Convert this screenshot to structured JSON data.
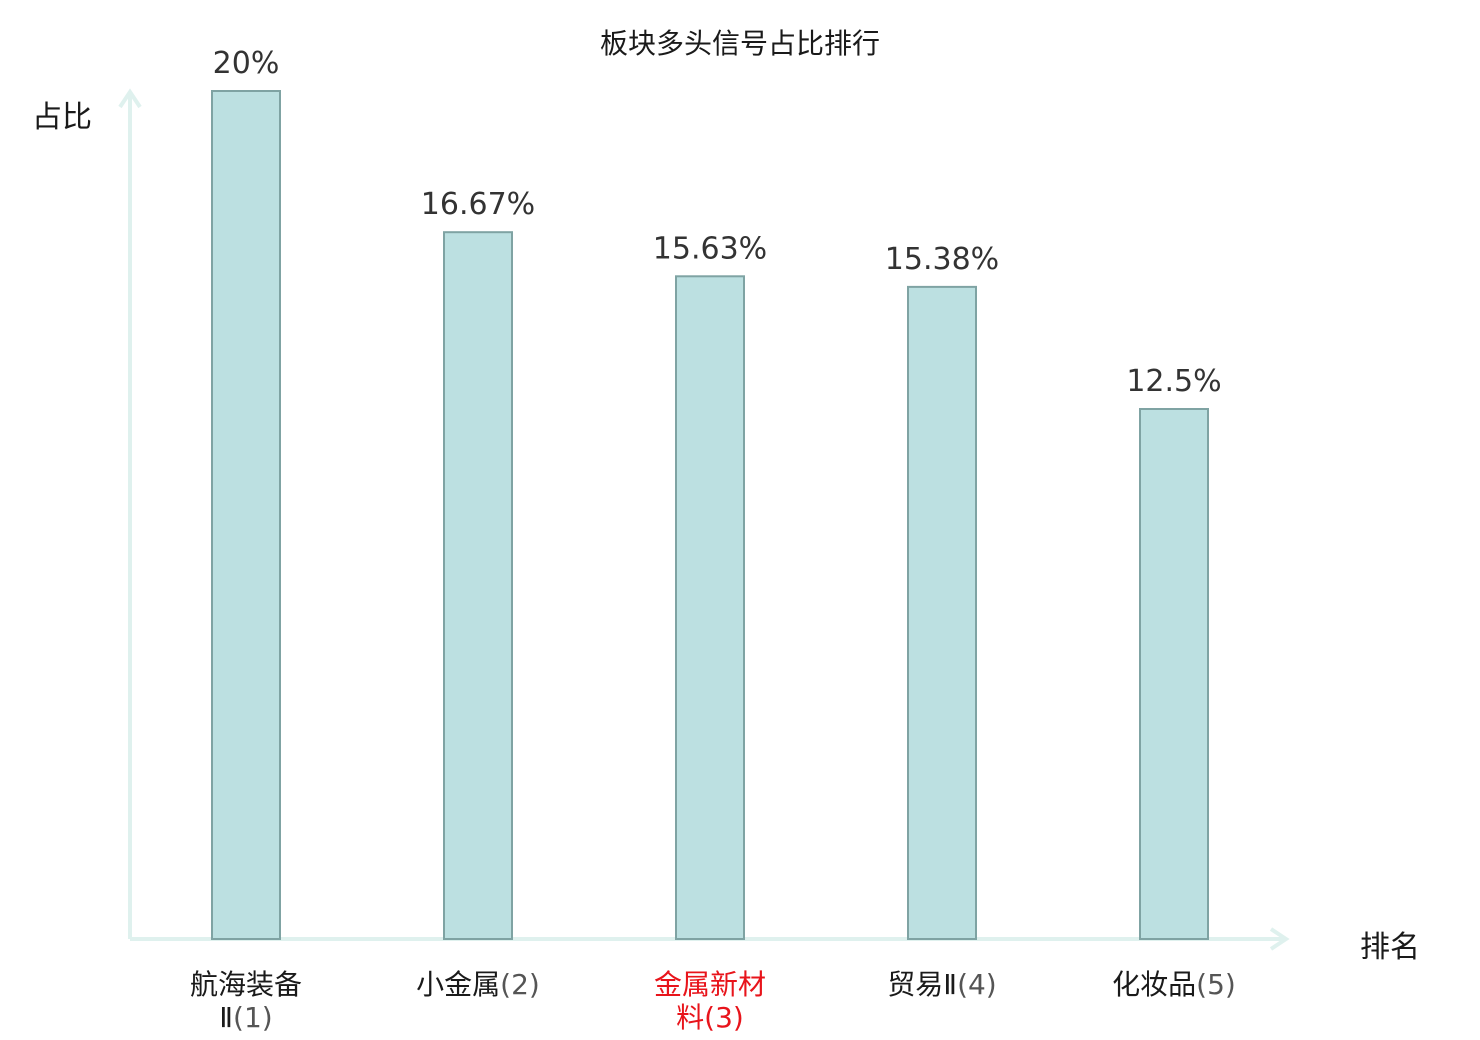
{
  "chart_data": {
    "type": "bar",
    "title": "板块多头信号占比排行",
    "xlabel": "排名",
    "ylabel": "占比",
    "categories": [
      {
        "name_lines": [
          "航海装备",
          "Ⅱ"
        ],
        "rank": "(1)",
        "highlight": false
      },
      {
        "name_lines": [
          "小金属"
        ],
        "rank": "(2)",
        "highlight": false
      },
      {
        "name_lines": [
          "金属新材",
          "料"
        ],
        "rank": "(3)",
        "highlight": true
      },
      {
        "name_lines": [
          "贸易Ⅱ"
        ],
        "rank": "(4)",
        "highlight": false
      },
      {
        "name_lines": [
          "化妆品"
        ],
        "rank": "(5)",
        "highlight": false
      }
    ],
    "values": [
      20,
      16.67,
      15.63,
      15.38,
      12.5
    ],
    "value_labels": [
      "20%",
      "16.67%",
      "15.63%",
      "15.38%",
      "12.5%"
    ],
    "ylim": [
      0,
      20
    ],
    "grid": false,
    "legend": "none",
    "colors": {
      "bar_fill": "#bce0e1",
      "bar_stroke": "#7fa3a3",
      "axis": "#dff1ee",
      "label_text": "#1a1a1a",
      "rank_text": "#555555",
      "value_text": "#333333",
      "highlight": "#e8141b"
    }
  }
}
